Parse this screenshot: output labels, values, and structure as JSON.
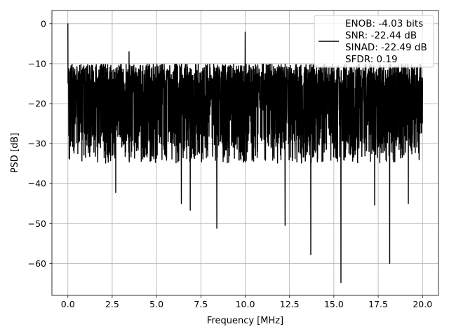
{
  "chart_data": {
    "type": "line",
    "title": "",
    "xlabel": "Frequency [MHz]",
    "ylabel": "PSD [dB]",
    "xlim": [
      -0.9,
      20.9
    ],
    "ylim": [
      -68,
      3.3
    ],
    "xticks": [
      0.0,
      2.5,
      5.0,
      7.5,
      10.0,
      12.5,
      15.0,
      17.5,
      20.0
    ],
    "xtick_labels": [
      "0.0",
      "2.5",
      "5.0",
      "7.5",
      "10.0",
      "12.5",
      "15.0",
      "17.5",
      "20.0"
    ],
    "yticks": [
      0,
      -10,
      -20,
      -30,
      -40,
      -50,
      -60
    ],
    "ytick_labels": [
      "0",
      "−10",
      "−20",
      "−30",
      "−40",
      "−50",
      "−60"
    ],
    "grid": true,
    "legend_position": "top-right",
    "legend_lines": [
      "ENOB: -4.03 bits",
      "SNR: -22.44 dB",
      "SINAD: -22.49 dB",
      "SFDR: 0.19"
    ],
    "series": [
      {
        "color": "#000000",
        "x_range": [
          0,
          20
        ],
        "noise_band": [
          -30,
          -10
        ],
        "notable_points": [
          {
            "x": 0.0,
            "y": 0.0
          },
          {
            "x": 0.05,
            "y": -28.0
          },
          {
            "x": 2.7,
            "y": -42.3
          },
          {
            "x": 3.45,
            "y": -7.0
          },
          {
            "x": 6.4,
            "y": -45.0
          },
          {
            "x": 6.9,
            "y": -46.7
          },
          {
            "x": 8.4,
            "y": -51.2
          },
          {
            "x": 10.0,
            "y": -2.1
          },
          {
            "x": 12.25,
            "y": -50.5
          },
          {
            "x": 13.7,
            "y": -57.8
          },
          {
            "x": 15.4,
            "y": -64.8
          },
          {
            "x": 17.3,
            "y": -45.4
          },
          {
            "x": 18.15,
            "y": -60.0
          },
          {
            "x": 19.2,
            "y": -45.0
          }
        ]
      }
    ]
  }
}
